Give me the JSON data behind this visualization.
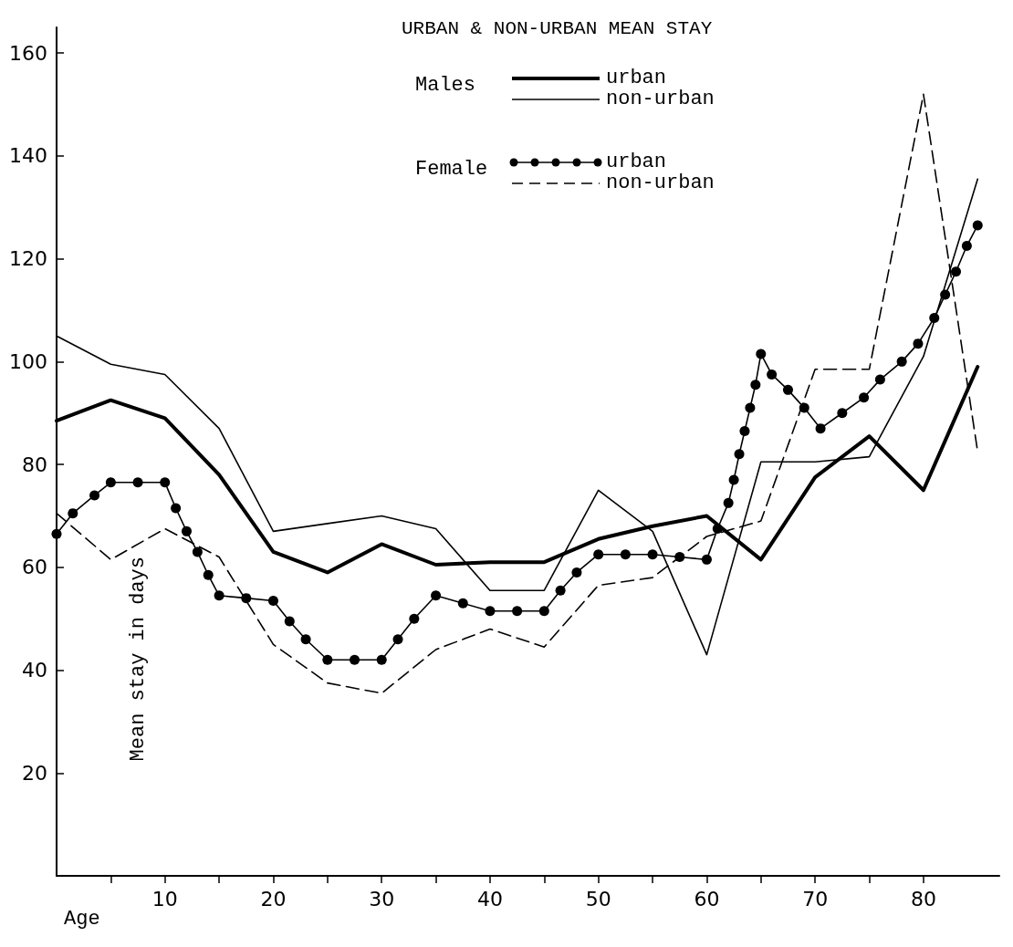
{
  "chart_data": {
    "type": "line",
    "title": "URBAN & NON-URBAN MEAN STAY",
    "xlabel": "Age",
    "ylabel": "Mean stay in days",
    "annotations": [
      "Males",
      "Female"
    ],
    "xlim": [
      0,
      87
    ],
    "xticks": [
      {
        "value": 5,
        "label": null
      },
      10,
      {
        "value": 15,
        "label": null
      },
      20,
      {
        "value": 25,
        "label": null
      },
      30,
      {
        "value": 35,
        "label": null
      },
      40,
      {
        "value": 45,
        "label": null
      },
      50,
      {
        "value": 55,
        "label": null
      },
      60,
      {
        "value": 65,
        "label": null
      },
      70,
      {
        "value": 75,
        "label": null
      },
      80
    ],
    "ylim": [
      0,
      165
    ],
    "yticks": [
      20,
      40,
      60,
      80,
      100,
      120,
      140,
      160
    ],
    "grid": false,
    "legend": "top",
    "marker": "none",
    "line_style": "solid",
    "series": [
      {
        "name": "urban",
        "color": "#000000",
        "x": [
          0,
          5,
          10,
          15,
          20,
          25,
          30,
          35,
          40,
          45,
          50,
          55,
          60,
          65,
          70,
          75,
          80,
          85
        ],
        "values": [
          88.5,
          92.5,
          89,
          78,
          63,
          59,
          64.5,
          60.5,
          61,
          61,
          65.5,
          68,
          70,
          61.5,
          77.5,
          85.5,
          75,
          99
        ]
      },
      {
        "name": "non-urban",
        "color": "#000000",
        "x": [
          0,
          5,
          10,
          15,
          20,
          25,
          30,
          35,
          40,
          45,
          50,
          55,
          60,
          65,
          70,
          75,
          80,
          85
        ],
        "values": [
          105,
          99.5,
          97.5,
          87,
          67,
          68.5,
          70,
          67.5,
          55.5,
          55.5,
          75,
          67,
          43,
          80.5,
          80.5,
          81.5,
          101,
          135.5
        ]
      },
      {
        "name": "urban",
        "color": "#000000",
        "marker": "circle",
        "x": [
          0,
          1.5,
          3.5,
          5,
          7.5,
          10,
          11,
          12,
          13,
          14,
          15,
          17.5,
          20,
          21.5,
          23,
          25,
          27.5,
          30,
          31.5,
          33,
          35,
          37.5,
          40,
          42.5,
          45,
          46.5,
          48,
          50,
          52.5,
          55,
          57.5,
          60,
          61,
          62,
          62.5,
          63,
          63.5,
          64,
          64.5,
          65,
          66,
          67.5,
          69,
          70.5,
          72.5,
          74.5,
          76,
          78,
          79.5,
          81,
          82,
          83,
          84,
          85
        ],
        "values": [
          66.5,
          70.5,
          74,
          76.5,
          76.5,
          76.5,
          71.5,
          67,
          63,
          58.5,
          54.5,
          54,
          53.5,
          49.5,
          46,
          42,
          42,
          42,
          46,
          50,
          54.5,
          53,
          51.5,
          51.5,
          51.5,
          55.5,
          59,
          62.5,
          62.5,
          62.5,
          62,
          61.5,
          67.5,
          72.5,
          77,
          82,
          86.5,
          91,
          95.5,
          101.5,
          97.5,
          94.5,
          91,
          87,
          90,
          93,
          96.5,
          100,
          103.5,
          108.5,
          113,
          117.5,
          122.5,
          126.5
        ]
      },
      {
        "name": "non-urban",
        "color": "#000000",
        "line_style": "dashed",
        "x": [
          0,
          5,
          10,
          15,
          20,
          25,
          30,
          35,
          40,
          45,
          50,
          55,
          60,
          65,
          70,
          75,
          80,
          85
        ],
        "values": [
          70.5,
          61.5,
          67.5,
          62,
          45,
          37.5,
          35.5,
          44,
          48,
          44.5,
          56.5,
          58,
          66,
          69,
          98.5,
          98.5,
          152,
          82.5
        ]
      }
    ]
  }
}
